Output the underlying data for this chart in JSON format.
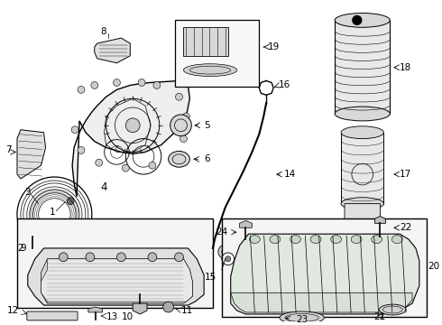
{
  "background_color": "#ffffff",
  "line_color": "#000000",
  "text_color": "#000000",
  "fig_width": 4.9,
  "fig_height": 3.6,
  "dpi": 100,
  "font_size": 7.5
}
